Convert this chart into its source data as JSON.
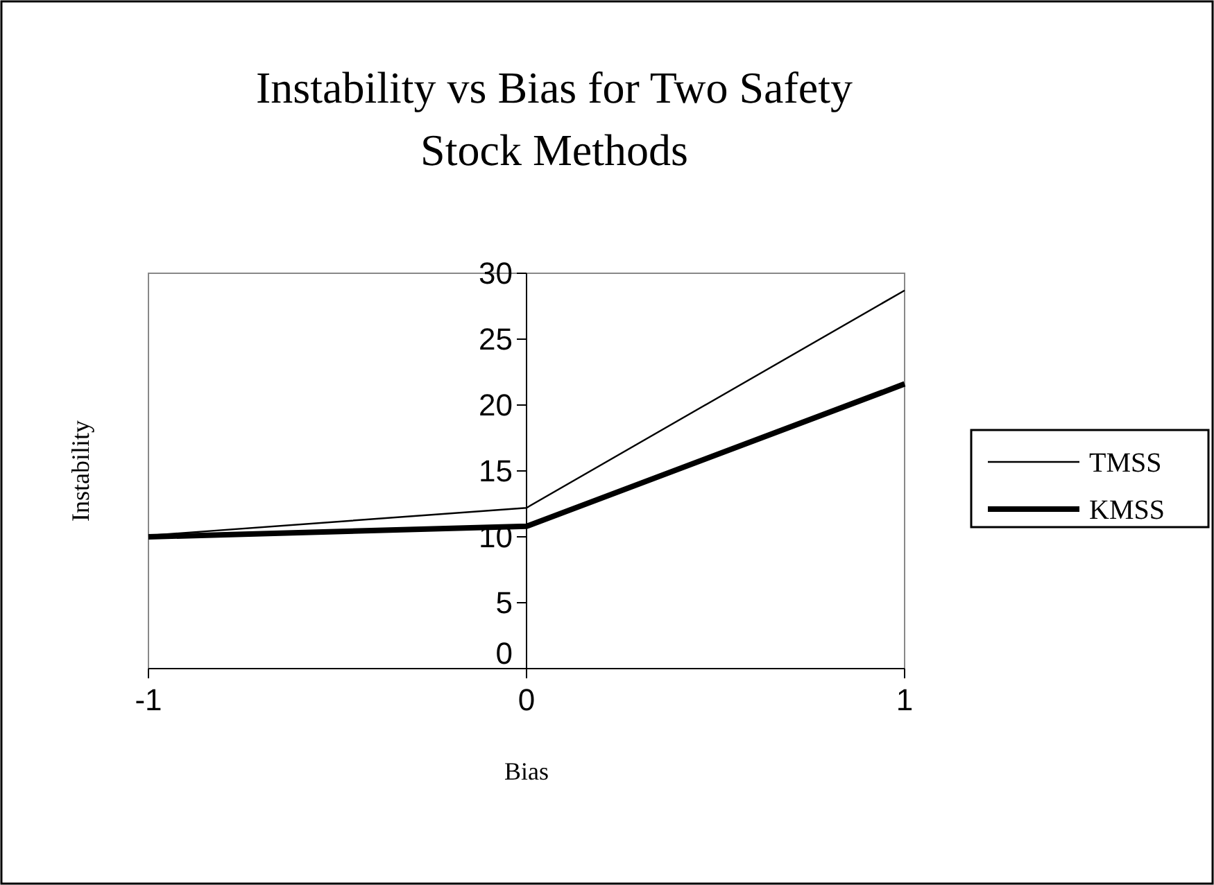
{
  "chart_data": {
    "type": "line",
    "title": "Instability vs Bias for Two Safety Stock Methods",
    "xlabel": "Bias",
    "ylabel": "Instability",
    "x": [
      -1,
      0,
      1
    ],
    "series": [
      {
        "name": "TMSS",
        "color": "#000000",
        "values": [
          10.1,
          12.2,
          28.7
        ]
      },
      {
        "name": "KMSS",
        "color": "#000000",
        "values": [
          10.0,
          10.8,
          21.6
        ]
      }
    ],
    "xlim": [
      -1,
      1
    ],
    "xticks": [
      -1,
      0,
      1
    ],
    "ylim": [
      0,
      30
    ],
    "yticks": [
      0,
      5,
      10,
      15,
      20,
      25,
      30
    ],
    "grid": false,
    "legend": "right",
    "marker": "none",
    "line_style": "solid"
  }
}
